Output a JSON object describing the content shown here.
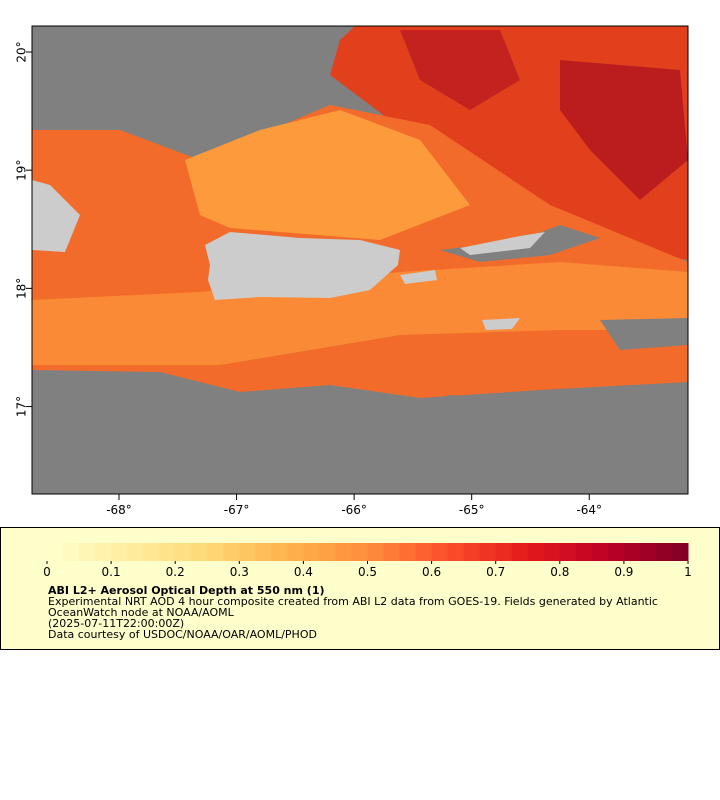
{
  "map": {
    "xlim": [
      -68.74,
      -63.16
    ],
    "ylim": [
      16.26,
      20.22
    ],
    "xticks": [
      {
        "value": -68,
        "label": "-68°"
      },
      {
        "value": -67,
        "label": "-67°"
      },
      {
        "value": -66,
        "label": "-66°"
      },
      {
        "value": -65,
        "label": "-65°"
      },
      {
        "value": -64,
        "label": "-64°"
      }
    ],
    "yticks": [
      {
        "value": 17,
        "label": "17°"
      },
      {
        "value": 18,
        "label": "18°"
      },
      {
        "value": 19,
        "label": "19°"
      },
      {
        "value": 20,
        "label": "20°"
      }
    ]
  },
  "legend": {
    "colorbar": {
      "range": [
        0,
        1
      ],
      "ticks": [
        0,
        0.1,
        0.2,
        0.3,
        0.4,
        0.5,
        0.6,
        0.7,
        0.8,
        0.9,
        1
      ],
      "colors": [
        "#ffffcc",
        "#ffeda0",
        "#fed976",
        "#feb24c",
        "#fd8d3c",
        "#fc4e2a",
        "#e31a1c",
        "#bd0026",
        "#800026"
      ]
    },
    "title": "ABI L2+ Aerosol Optical Depth at 550 nm (1)",
    "description": [
      "Experimental NRT AOD 4 hour composite created from ABI L2 data from GOES-19. Fields generated by Atlantic",
      "OceanWatch node at NOAA/AOML"
    ],
    "time": "(2025-07-11T22:00:00Z)",
    "credit": "Data courtesy of USDOC/NOAA/OAR/AOML/PHOD"
  }
}
